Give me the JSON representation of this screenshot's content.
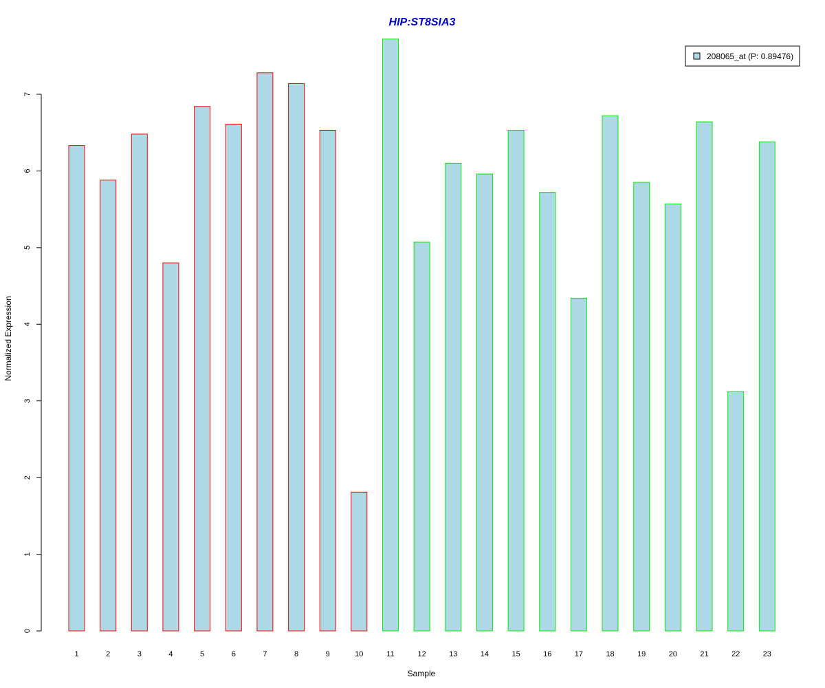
{
  "colors": {
    "title": "#0000cd",
    "bar_fill": "#add8e6",
    "group1_border": "#ff0000",
    "group2_border": "#00ee00",
    "axis": "#000000"
  },
  "legend": {
    "label": "208065_at (P: 0.89476)"
  },
  "chart_data": {
    "type": "bar",
    "title": "HIP:ST8SIA3",
    "xlabel": "Sample",
    "ylabel": "Normalized Expression",
    "ylim": [
      0,
      7.75
    ],
    "yticks": [
      0,
      1,
      2,
      3,
      4,
      5,
      6,
      7
    ],
    "legend_position": "top-right",
    "grid": false,
    "categories": [
      "1",
      "2",
      "3",
      "4",
      "5",
      "6",
      "7",
      "8",
      "9",
      "10",
      "11",
      "12",
      "13",
      "14",
      "15",
      "16",
      "17",
      "18",
      "19",
      "20",
      "21",
      "22",
      "23"
    ],
    "series": [
      {
        "name": "208065_at (P: 0.89476)",
        "values": [
          6.33,
          5.88,
          6.48,
          4.8,
          6.84,
          6.61,
          7.28,
          7.14,
          6.53,
          1.81,
          7.72,
          5.07,
          6.1,
          5.96,
          6.53,
          5.72,
          4.34,
          6.72,
          5.85,
          5.57,
          6.64,
          3.12,
          6.38
        ],
        "groups": [
          1,
          1,
          1,
          1,
          1,
          1,
          1,
          1,
          1,
          1,
          2,
          2,
          2,
          2,
          2,
          2,
          2,
          2,
          2,
          2,
          2,
          2,
          2
        ]
      }
    ]
  }
}
